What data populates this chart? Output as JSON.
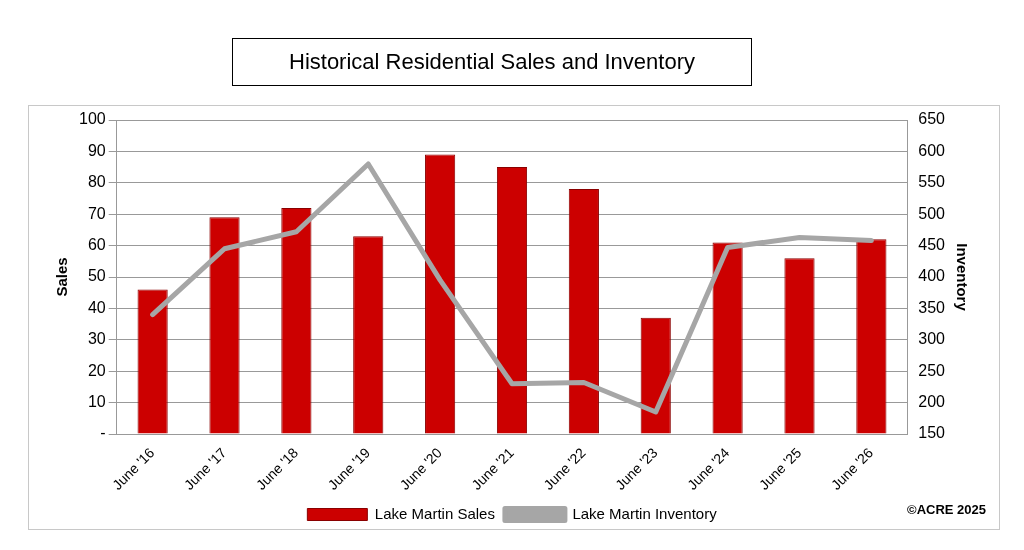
{
  "chart_data": {
    "type": "bar",
    "title": "Historical Residential Sales and Inventory",
    "ylabel": "Sales",
    "y2label": "Inventory",
    "categories": [
      "June '16",
      "June '17",
      "June '18",
      "June '19",
      "June '20",
      "June '21",
      "June '22",
      "June '23",
      "June '24",
      "June '25",
      "June '26"
    ],
    "series": [
      {
        "name": "Lake Martin Sales",
        "color": "#cc0000",
        "values": [
          46,
          69,
          72,
          63,
          89,
          85,
          78,
          37,
          61,
          56,
          62
        ]
      },
      {
        "name": "Lake Martin Inventory",
        "type": "line",
        "axis": "y2",
        "color": "#a6a6a6",
        "values": [
          340,
          445,
          472,
          580,
          395,
          230,
          232,
          185,
          447,
          463,
          458
        ]
      }
    ],
    "ylim": [
      0,
      100
    ],
    "yticks": [
      {
        "value": 0,
        "label": "-"
      },
      10,
      20,
      30,
      40,
      50,
      60,
      70,
      80,
      90,
      100
    ],
    "y2lim": [
      150,
      650
    ],
    "y2ticks": [
      150,
      200,
      250,
      300,
      350,
      400,
      450,
      500,
      550,
      600,
      650
    ],
    "grid": "y",
    "legend": "bottom",
    "marker": "none",
    "annotations": [
      "©ACRE 2025"
    ]
  }
}
